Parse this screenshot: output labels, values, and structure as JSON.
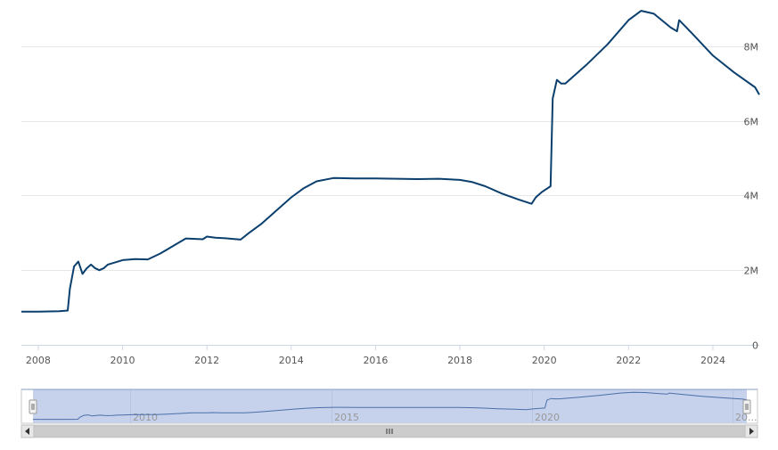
{
  "chart_data": {
    "type": "line",
    "title": "",
    "xlabel": "",
    "ylabel": "",
    "xlim": [
      2007.6,
      2025.1
    ],
    "ylim": [
      0,
      9000000
    ],
    "y_ticks": [
      {
        "value": 0,
        "label": "0"
      },
      {
        "value": 2000000,
        "label": "2M"
      },
      {
        "value": 4000000,
        "label": "4M"
      },
      {
        "value": 6000000,
        "label": "6M"
      },
      {
        "value": 8000000,
        "label": "8M"
      }
    ],
    "x_ticks": [
      {
        "value": 2008,
        "label": "2008"
      },
      {
        "value": 2010,
        "label": "2010"
      },
      {
        "value": 2012,
        "label": "2012"
      },
      {
        "value": 2014,
        "label": "2014"
      },
      {
        "value": 2016,
        "label": "2016"
      },
      {
        "value": 2018,
        "label": "2018"
      },
      {
        "value": 2020,
        "label": "2020"
      },
      {
        "value": 2022,
        "label": "2022"
      },
      {
        "value": 2024,
        "label": "2024"
      }
    ],
    "grid": true,
    "line_color": "#0b3f6e",
    "series": [
      {
        "x": [
          2007.6,
          2008.0,
          2008.5,
          2008.7,
          2008.75,
          2008.85,
          2008.95,
          2009.05,
          2009.15,
          2009.25,
          2009.35,
          2009.45,
          2009.55,
          2009.65,
          2009.8,
          2010.0,
          2010.3,
          2010.6,
          2010.9,
          2011.2,
          2011.5,
          2011.9,
          2012.0,
          2012.2,
          2012.5,
          2012.8,
          2013.0,
          2013.3,
          2013.6,
          2014.0,
          2014.3,
          2014.6,
          2015.0,
          2015.5,
          2016.0,
          2016.5,
          2017.0,
          2017.5,
          2018.0,
          2018.3,
          2018.6,
          2019.0,
          2019.4,
          2019.7,
          2019.8,
          2019.95,
          2020.15,
          2020.2,
          2020.3,
          2020.4,
          2020.5,
          2021.0,
          2021.5,
          2022.0,
          2022.3,
          2022.6,
          2023.0,
          2023.15,
          2023.2,
          2023.5,
          2024.0,
          2024.5,
          2025.0,
          2025.1
        ],
        "y": [
          890000,
          890000,
          900000,
          920000,
          1500000,
          2100000,
          2230000,
          1900000,
          2050000,
          2150000,
          2050000,
          2000000,
          2050000,
          2150000,
          2200000,
          2270000,
          2300000,
          2290000,
          2450000,
          2650000,
          2850000,
          2830000,
          2900000,
          2870000,
          2850000,
          2820000,
          3000000,
          3250000,
          3550000,
          3950000,
          4200000,
          4380000,
          4470000,
          4460000,
          4460000,
          4450000,
          4440000,
          4450000,
          4420000,
          4360000,
          4250000,
          4050000,
          3890000,
          3780000,
          3950000,
          4100000,
          4250000,
          6600000,
          7100000,
          7000000,
          7000000,
          7500000,
          8050000,
          8700000,
          8950000,
          8870000,
          8500000,
          8400000,
          8700000,
          8350000,
          7750000,
          7300000,
          6900000,
          6700000
        ]
      }
    ],
    "navigator": {
      "labels": [
        "2010",
        "2015",
        "2020",
        "20..."
      ]
    }
  }
}
